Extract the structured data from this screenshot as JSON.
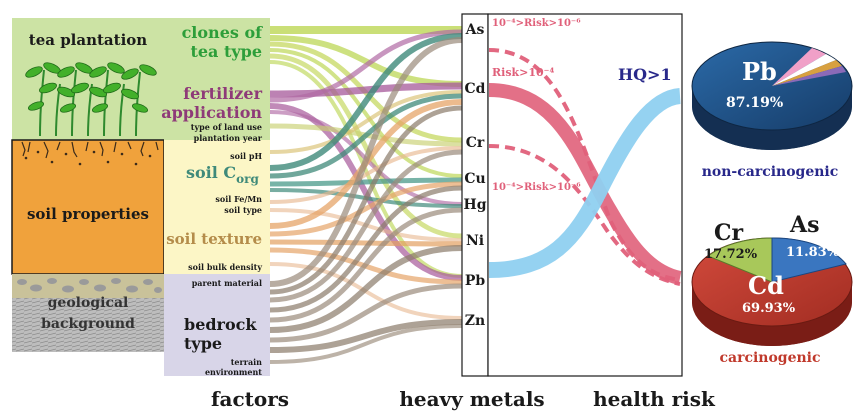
{
  "left_panel": {
    "tea_plantation": "tea plantation",
    "soil_properties": "soil properties",
    "geological_line1": "geological",
    "geological_line2": "background"
  },
  "factors": {
    "clones_line1": "clones of",
    "clones_line2": "tea type",
    "fertilizer_line1": "fertilizer",
    "fertilizer_line2": "application",
    "land_use": "type of land use",
    "plantation_year": "plantation year",
    "soil_ph": "soil pH",
    "soil_corg_main": "soil C",
    "soil_corg_sub": "org",
    "soil_femn": "soil Fe/Mn",
    "soil_type": "soil type",
    "soil_texture": "soil texture",
    "soil_bulk_density": "soil bulk density",
    "parent_material": "parent material",
    "bedrock_line1": "bedrock",
    "bedrock_line2": "type",
    "terrain": "terrain",
    "environment": "environment"
  },
  "metals": [
    "As",
    "Cd",
    "Cr",
    "Cu",
    "Hg",
    "Ni",
    "Pb",
    "Zn"
  ],
  "risk_labels": {
    "as_range": "10⁻⁴>Risk>10⁻⁶",
    "cd_risk": "Risk>10⁻⁴",
    "cr_range": "10⁻⁴>Risk>10⁻⁶",
    "hq": "HQ>1"
  },
  "pie_non_carcinogenic": {
    "caption": "non-carcinogenic",
    "main_label": "Pb",
    "main_percent": "87.19%"
  },
  "pie_carcinogenic": {
    "caption": "carcinogenic",
    "cr_label": "Cr",
    "cr_percent": "17.72%",
    "as_label": "As",
    "as_percent": "11.83%",
    "cd_label": "Cd",
    "cd_percent": "69.93%"
  },
  "bottom_labels": {
    "factors": "factors",
    "heavy_metals": "heavy metals",
    "health_risk": "health risk"
  },
  "colors": {
    "clones": "#2d9e3a",
    "fertilizer": "#8e3a78",
    "soil_corg": "#3f8a7a",
    "soil_texture": "#b48c4a",
    "bedrock": "#333333",
    "risk_pink": "#e0607a",
    "hq_blue": "#28288a",
    "pie_blue": "#1d4f86",
    "pie_red": "#c0392b",
    "carcinogenic_red": "#c0392b"
  }
}
